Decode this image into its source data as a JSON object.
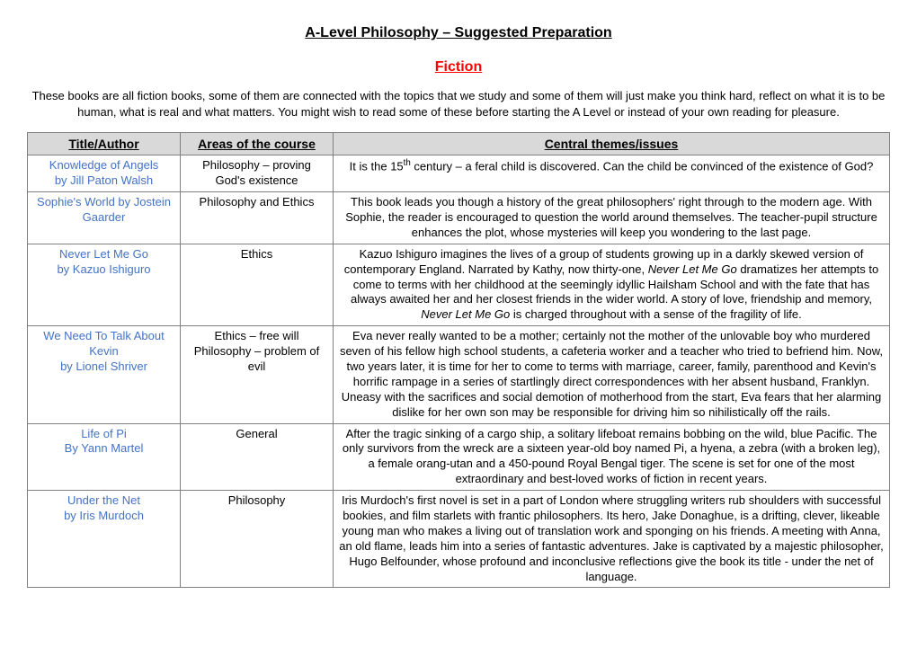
{
  "page": {
    "main_title": "A-Level Philosophy – Suggested Preparation",
    "section_title": "Fiction",
    "intro": "These books are all fiction books, some of them are connected with the topics that we study and some of them will just make you think hard, reflect on what it is to be human, what is real and what matters. You might wish to read some of these before starting the A Level or instead of your own reading for pleasure."
  },
  "table": {
    "headers": {
      "col1": "Title/Author",
      "col2": "Areas of the course",
      "col3": "Central themes/issues"
    },
    "rows": [
      {
        "title": "Knowledge of Angels",
        "author": "by Jill Paton Walsh",
        "area": "Philosophy – proving God's existence",
        "theme_html": "It is the 15<sup>th</sup> century – a feral child is discovered. Can the child be convinced of the existence of God?"
      },
      {
        "title": "Sophie's World by Jostein Gaarder",
        "author": "",
        "area": "Philosophy and Ethics",
        "theme_html": "This book leads you though a history of the great philosophers' right through to the modern age. With Sophie, the reader is encouraged to question the world around themselves. The teacher-pupil structure enhances the plot, whose mysteries will keep you wondering to the last page."
      },
      {
        "title": "Never Let Me Go",
        "author": "by Kazuo Ishiguro",
        "area": "Ethics",
        "theme_html": "Kazuo Ishiguro imagines the lives of a group of students growing up in a darkly skewed version of contemporary England. Narrated by Kathy, now thirty-one, <span class=\"italic\">Never Let Me Go</span> dramatizes her attempts to come to terms with her childhood at the seemingly idyllic Hailsham School and with the fate that has always awaited her and her closest friends in the wider world. A story of love, friendship and memory, <span class=\"italic\">Never Let Me Go</span> is charged throughout with a sense of the fragility of life."
      },
      {
        "title": "We Need To Talk About Kevin",
        "author": "by Lionel Shriver",
        "area": "Ethics – free will Philosophy – problem of evil",
        "theme_html": "Eva never really wanted to be a mother; certainly not the mother of the unlovable boy who murdered seven of his fellow high school students, a cafeteria worker and a teacher who tried to befriend him. Now, two years later, it is time for her to come to terms with marriage, career, family, parenthood and Kevin's horrific rampage in a series of startlingly direct correspondences with her absent husband, Franklyn. Uneasy with the sacrifices and social demotion of motherhood from the start, Eva fears that her alarming dislike for her own son may be responsible for driving him so nihilistically off the rails."
      },
      {
        "title": "Life of Pi",
        "author": "By Yann Martel",
        "area": "General",
        "theme_html": "After the tragic sinking of a cargo ship, a solitary lifeboat remains bobbing on the wild, blue Pacific. The only survivors from the wreck are a sixteen year-old boy named Pi, a hyena, a zebra (with a broken leg), a female orang-utan and a 450-pound Royal Bengal tiger. The scene is set for one of the most extraordinary and best-loved works of fiction in recent years."
      },
      {
        "title": "Under the Net",
        "author": "by Iris Murdoch",
        "area": "Philosophy",
        "theme_html": "Iris Murdoch's first novel is set in a part of London where struggling writers rub shoulders with successful bookies, and film starlets with frantic philosophers. Its hero, Jake Donaghue, is a drifting, clever, likeable young man who makes a living out of translation work and sponging on his friends. A meeting with Anna, an old flame, leads him into a series of fantastic adventures. Jake is captivated by a majestic philosopher, Hugo Belfounder, whose profound and inconclusive reflections give the book its title - under the net of language."
      }
    ]
  }
}
